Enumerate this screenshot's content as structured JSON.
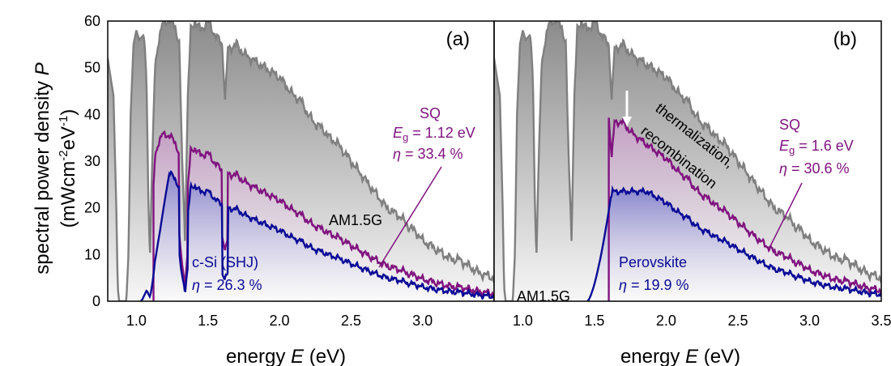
{
  "chart_data": {
    "type": "area",
    "ylabel_line1": "spectral power density ",
    "ylabel_symbol": "P",
    "ylabel_line2_a": "(mWcm",
    "ylabel_line2_exp1": "-2",
    "ylabel_line2_b": "eV",
    "ylabel_line2_exp2": "-1",
    "ylabel_line2_c": ")",
    "ylim": [
      0,
      60
    ],
    "yticks": [
      "0",
      "10",
      "20",
      "30",
      "40",
      "50",
      "60"
    ],
    "ytick_values": [
      0,
      10,
      20,
      30,
      40,
      50,
      60
    ],
    "colors": {
      "am15g": "#7f7f7f",
      "sq": "#80147f",
      "device": "#0a0a96",
      "arrow": "#ffffff"
    },
    "panels": [
      {
        "label": "(a)",
        "xlabel_a": "energy ",
        "xlabel_symbol": "E",
        "xlabel_b": " (eV)",
        "xlim": [
          0.8,
          3.5
        ],
        "xticks": [
          "1.0",
          "1.5",
          "2.0",
          "2.5",
          "3.0"
        ],
        "xtick_values": [
          1.0,
          1.5,
          2.0,
          2.5,
          3.0
        ],
        "am15g_label": "AM1.5G",
        "sq_title": "SQ",
        "sq_eg_symbol": "E",
        "sq_eg_sub": "g",
        "sq_eg_value": " = 1.12 eV",
        "sq_eta_symbol": "η",
        "sq_eta_value": " = 33.4 %",
        "device_name": "c-Si (SHJ)",
        "device_eta_symbol": "η",
        "device_eta_value": " = 26.3 %",
        "eg": 1.12,
        "device_onset": 1.03,
        "device_peak": 28.5,
        "device_drop": 1.62
      },
      {
        "label": "(b)",
        "xlabel_a": "energy ",
        "xlabel_symbol": "E",
        "xlabel_b": " (eV)",
        "xlim": [
          0.8,
          3.5
        ],
        "xticks": [
          "1.0",
          "1.5",
          "2.0",
          "2.5",
          "3.0",
          "3.5"
        ],
        "xtick_values": [
          1.0,
          1.5,
          2.0,
          2.5,
          3.0,
          3.5
        ],
        "am15g_label": "AM1.5G",
        "sq_title": "SQ",
        "sq_eg_symbol": "E",
        "sq_eg_sub": "g",
        "sq_eg_value": " = 1.6 eV",
        "sq_eta_symbol": "η",
        "sq_eta_value": " = 30.6 %",
        "device_name": "Perovskite",
        "device_eta_symbol": "η",
        "device_eta_value": " = 19.9 %",
        "loss_line1": "thermalization,",
        "loss_line2": "recombination",
        "eg": 1.6,
        "device_onset": 1.45,
        "device_peak": 23.5,
        "device_drop": 1.62
      }
    ],
    "am15g_points": [
      [
        0.8,
        52
      ],
      [
        0.84,
        44
      ],
      [
        0.86,
        20
      ],
      [
        0.87,
        3
      ],
      [
        0.88,
        0
      ],
      [
        0.93,
        0
      ],
      [
        0.945,
        10
      ],
      [
        0.96,
        40
      ],
      [
        0.98,
        55
      ],
      [
        1.0,
        58
      ],
      [
        1.02,
        56
      ],
      [
        1.05,
        57
      ],
      [
        1.07,
        49
      ],
      [
        1.085,
        20
      ],
      [
        1.095,
        10
      ],
      [
        1.11,
        28
      ],
      [
        1.13,
        50
      ],
      [
        1.15,
        55
      ],
      [
        1.18,
        59
      ],
      [
        1.2,
        60
      ],
      [
        1.24,
        60
      ],
      [
        1.27,
        59
      ],
      [
        1.3,
        55
      ],
      [
        1.32,
        30
      ],
      [
        1.34,
        14
      ],
      [
        1.36,
        44
      ],
      [
        1.38,
        58
      ],
      [
        1.41,
        60
      ],
      [
        1.45,
        58
      ],
      [
        1.5,
        60
      ],
      [
        1.55,
        57
      ],
      [
        1.6,
        55
      ],
      [
        1.62,
        43
      ],
      [
        1.64,
        54
      ],
      [
        1.7,
        55
      ],
      [
        1.75,
        53
      ],
      [
        1.8,
        52
      ],
      [
        1.85,
        51
      ],
      [
        1.9,
        50
      ],
      [
        1.95,
        49
      ],
      [
        2.0,
        48
      ],
      [
        2.05,
        46
      ],
      [
        2.1,
        44
      ],
      [
        2.15,
        43
      ],
      [
        2.2,
        40
      ],
      [
        2.25,
        38
      ],
      [
        2.3,
        37
      ],
      [
        2.35,
        35
      ],
      [
        2.4,
        34
      ],
      [
        2.45,
        32
      ],
      [
        2.5,
        30
      ],
      [
        2.55,
        28
      ],
      [
        2.6,
        26
      ],
      [
        2.65,
        24
      ],
      [
        2.7,
        22
      ],
      [
        2.75,
        20
      ],
      [
        2.8,
        19
      ],
      [
        2.85,
        18
      ],
      [
        2.9,
        16
      ],
      [
        2.95,
        15
      ],
      [
        3.0,
        13
      ],
      [
        3.05,
        12
      ],
      [
        3.1,
        11
      ],
      [
        3.15,
        10
      ],
      [
        3.2,
        9
      ],
      [
        3.25,
        9
      ],
      [
        3.3,
        8
      ],
      [
        3.35,
        7
      ],
      [
        3.4,
        6
      ],
      [
        3.45,
        5.5
      ],
      [
        3.5,
        5
      ]
    ]
  }
}
